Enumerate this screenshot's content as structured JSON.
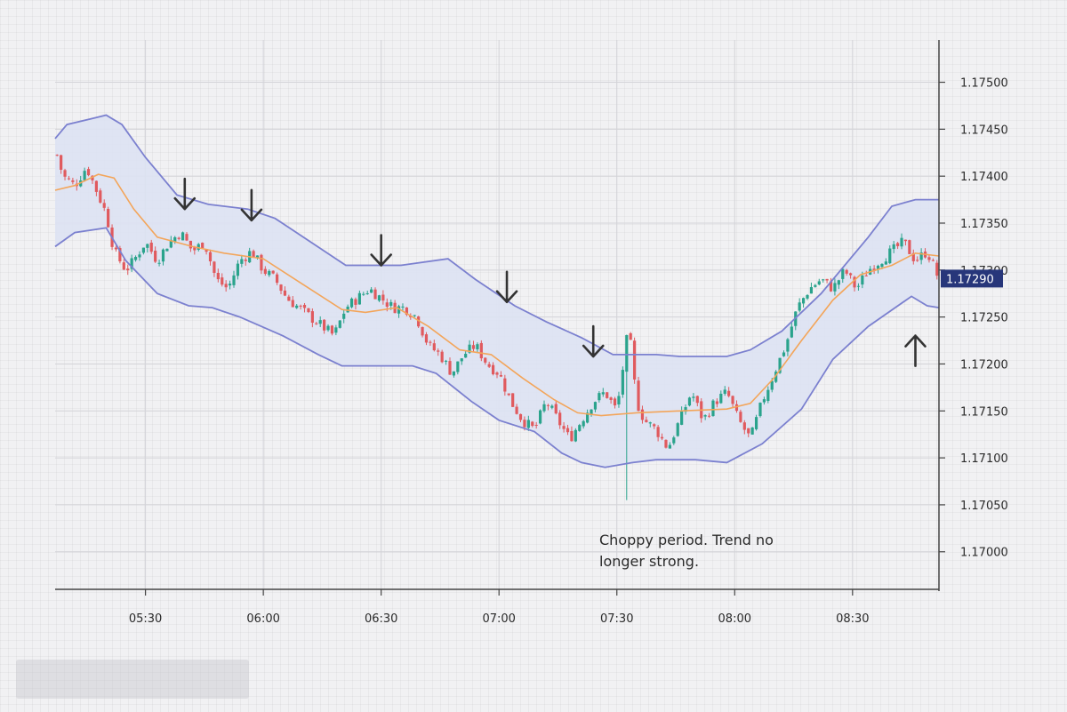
{
  "chart_data": {
    "type": "candlestick",
    "title": "",
    "xlabel": "",
    "ylabel": "",
    "ylim": [
      1.1696,
      1.17545
    ],
    "y_ticks": [
      "1.17500",
      "1.17450",
      "1.17400",
      "1.17350",
      "1.17300",
      "1.17250",
      "1.17200",
      "1.17150",
      "1.17100",
      "1.17050",
      "1.17000"
    ],
    "x_ticks": [
      "05:30",
      "06:00",
      "06:30",
      "07:00",
      "07:30",
      "08:00",
      "08:30"
    ],
    "x_tick_minutes": [
      330,
      360,
      390,
      420,
      450,
      480,
      510
    ],
    "x_range_minutes": [
      307,
      532
    ],
    "grid": true,
    "current_price": "1.17290",
    "colors": {
      "up": "#2aa38c",
      "down": "#e05a5e",
      "band": "#7b80cf",
      "band_fill": "#dde2f3",
      "middle": "#f3a55a",
      "price_tag": "#27367a",
      "arrow": "#333333"
    },
    "bollinger_upper": [
      [
        307,
        1.1744
      ],
      [
        310,
        1.17455
      ],
      [
        317,
        1.17462
      ],
      [
        320,
        1.17465
      ],
      [
        324,
        1.17455
      ],
      [
        330,
        1.1742
      ],
      [
        338,
        1.1738
      ],
      [
        346,
        1.1737
      ],
      [
        356,
        1.17365
      ],
      [
        363,
        1.17355
      ],
      [
        372,
        1.1733
      ],
      [
        381,
        1.17305
      ],
      [
        395,
        1.17305
      ],
      [
        407,
        1.17312
      ],
      [
        414,
        1.1729
      ],
      [
        424,
        1.17262
      ],
      [
        432,
        1.17245
      ],
      [
        441,
        1.17228
      ],
      [
        449,
        1.1721
      ],
      [
        460,
        1.1721
      ],
      [
        466,
        1.17208
      ],
      [
        478,
        1.17208
      ],
      [
        484,
        1.17215
      ],
      [
        492,
        1.17235
      ],
      [
        502,
        1.17275
      ],
      [
        514,
        1.17335
      ],
      [
        520,
        1.17368
      ],
      [
        526,
        1.17375
      ],
      [
        532,
        1.17375
      ]
    ],
    "bollinger_lower": [
      [
        307,
        1.17325
      ],
      [
        312,
        1.1734
      ],
      [
        320,
        1.17345
      ],
      [
        325,
        1.1731
      ],
      [
        333,
        1.17275
      ],
      [
        341,
        1.17262
      ],
      [
        347,
        1.1726
      ],
      [
        354,
        1.1725
      ],
      [
        365,
        1.1723
      ],
      [
        374,
        1.1721
      ],
      [
        380,
        1.17198
      ],
      [
        388,
        1.17198
      ],
      [
        398,
        1.17198
      ],
      [
        404,
        1.1719
      ],
      [
        413,
        1.1716
      ],
      [
        420,
        1.1714
      ],
      [
        429,
        1.17128
      ],
      [
        436,
        1.17105
      ],
      [
        441,
        1.17095
      ],
      [
        447,
        1.1709
      ],
      [
        454,
        1.17095
      ],
      [
        460,
        1.17098
      ],
      [
        470,
        1.17098
      ],
      [
        478,
        1.17095
      ],
      [
        487,
        1.17115
      ],
      [
        497,
        1.17152
      ],
      [
        505,
        1.17205
      ],
      [
        514,
        1.1724
      ],
      [
        525,
        1.17272
      ],
      [
        529,
        1.17262
      ],
      [
        532,
        1.1726
      ]
    ],
    "middle_band": [
      [
        307,
        1.17385
      ],
      [
        312,
        1.1739
      ],
      [
        318,
        1.17402
      ],
      [
        322,
        1.17398
      ],
      [
        327,
        1.17365
      ],
      [
        333,
        1.17335
      ],
      [
        342,
        1.17325
      ],
      [
        350,
        1.17318
      ],
      [
        360,
        1.17312
      ],
      [
        370,
        1.17285
      ],
      [
        380,
        1.17258
      ],
      [
        386,
        1.17255
      ],
      [
        394,
        1.1726
      ],
      [
        402,
        1.1724
      ],
      [
        410,
        1.17215
      ],
      [
        418,
        1.1721
      ],
      [
        426,
        1.17185
      ],
      [
        434,
        1.17162
      ],
      [
        440,
        1.17148
      ],
      [
        446,
        1.17145
      ],
      [
        455,
        1.17148
      ],
      [
        466,
        1.1715
      ],
      [
        478,
        1.17152
      ],
      [
        484,
        1.17158
      ],
      [
        490,
        1.17185
      ],
      [
        497,
        1.17225
      ],
      [
        505,
        1.17268
      ],
      [
        512,
        1.17295
      ],
      [
        520,
        1.17305
      ],
      [
        526,
        1.17318
      ],
      [
        532,
        1.17315
      ]
    ],
    "arrows": [
      {
        "direction": "down",
        "time": 340,
        "price": 1.17365
      },
      {
        "direction": "down",
        "time": 357,
        "price": 1.17353
      },
      {
        "direction": "down",
        "time": 390,
        "price": 1.17305
      },
      {
        "direction": "down",
        "time": 422,
        "price": 1.17266
      },
      {
        "direction": "down",
        "time": 444,
        "price": 1.17208
      },
      {
        "direction": "up",
        "time": 526,
        "price": 1.17198
      }
    ],
    "path_points": [
      [
        307,
        1.1743
      ],
      [
        309,
        1.174
      ],
      [
        312,
        1.1739
      ],
      [
        315,
        1.1741
      ],
      [
        318,
        1.1738
      ],
      [
        320,
        1.1736
      ],
      [
        322,
        1.1732
      ],
      [
        325,
        1.173
      ],
      [
        327,
        1.1731
      ],
      [
        330,
        1.1733
      ],
      [
        333,
        1.1731
      ],
      [
        336,
        1.1733
      ],
      [
        339,
        1.1734
      ],
      [
        342,
        1.1732
      ],
      [
        345,
        1.1733
      ],
      [
        348,
        1.1729
      ],
      [
        351,
        1.1728
      ],
      [
        354,
        1.1731
      ],
      [
        357,
        1.1732
      ],
      [
        360,
        1.173
      ],
      [
        363,
        1.1729
      ],
      [
        366,
        1.1727
      ],
      [
        369,
        1.1726
      ],
      [
        372,
        1.1725
      ],
      [
        375,
        1.1724
      ],
      [
        378,
        1.1723
      ],
      [
        381,
        1.1726
      ],
      [
        384,
        1.1727
      ],
      [
        387,
        1.1728
      ],
      [
        390,
        1.1727
      ],
      [
        393,
        1.1726
      ],
      [
        396,
        1.1726
      ],
      [
        399,
        1.1725
      ],
      [
        402,
        1.1722
      ],
      [
        405,
        1.1721
      ],
      [
        408,
        1.1719
      ],
      [
        411,
        1.1721
      ],
      [
        414,
        1.1722
      ],
      [
        417,
        1.172
      ],
      [
        420,
        1.1719
      ],
      [
        423,
        1.1716
      ],
      [
        426,
        1.1714
      ],
      [
        429,
        1.1713
      ],
      [
        432,
        1.1716
      ],
      [
        435,
        1.1714
      ],
      [
        438,
        1.1712
      ],
      [
        441,
        1.1714
      ],
      [
        444,
        1.1716
      ],
      [
        447,
        1.1717
      ],
      [
        450,
        1.1715
      ],
      [
        452,
        1.1721
      ],
      [
        453,
        1.1724
      ],
      [
        455,
        1.1716
      ],
      [
        457,
        1.1714
      ],
      [
        460,
        1.1713
      ],
      [
        463,
        1.1711
      ],
      [
        466,
        1.1714
      ],
      [
        469,
        1.1717
      ],
      [
        472,
        1.1714
      ],
      [
        475,
        1.1716
      ],
      [
        478,
        1.1717
      ],
      [
        481,
        1.1714
      ],
      [
        484,
        1.1712
      ],
      [
        487,
        1.1716
      ],
      [
        490,
        1.1719
      ],
      [
        493,
        1.1722
      ],
      [
        496,
        1.1726
      ],
      [
        499,
        1.1728
      ],
      [
        502,
        1.1729
      ],
      [
        505,
        1.1728
      ],
      [
        508,
        1.173
      ],
      [
        511,
        1.1728
      ],
      [
        514,
        1.173
      ],
      [
        517,
        1.1731
      ],
      [
        520,
        1.1732
      ],
      [
        523,
        1.1733
      ],
      [
        526,
        1.1731
      ],
      [
        529,
        1.1732
      ],
      [
        532,
        1.1729
      ]
    ]
  },
  "annotation": {
    "line1": "Choppy period. Trend no",
    "line2": "longer strong."
  }
}
